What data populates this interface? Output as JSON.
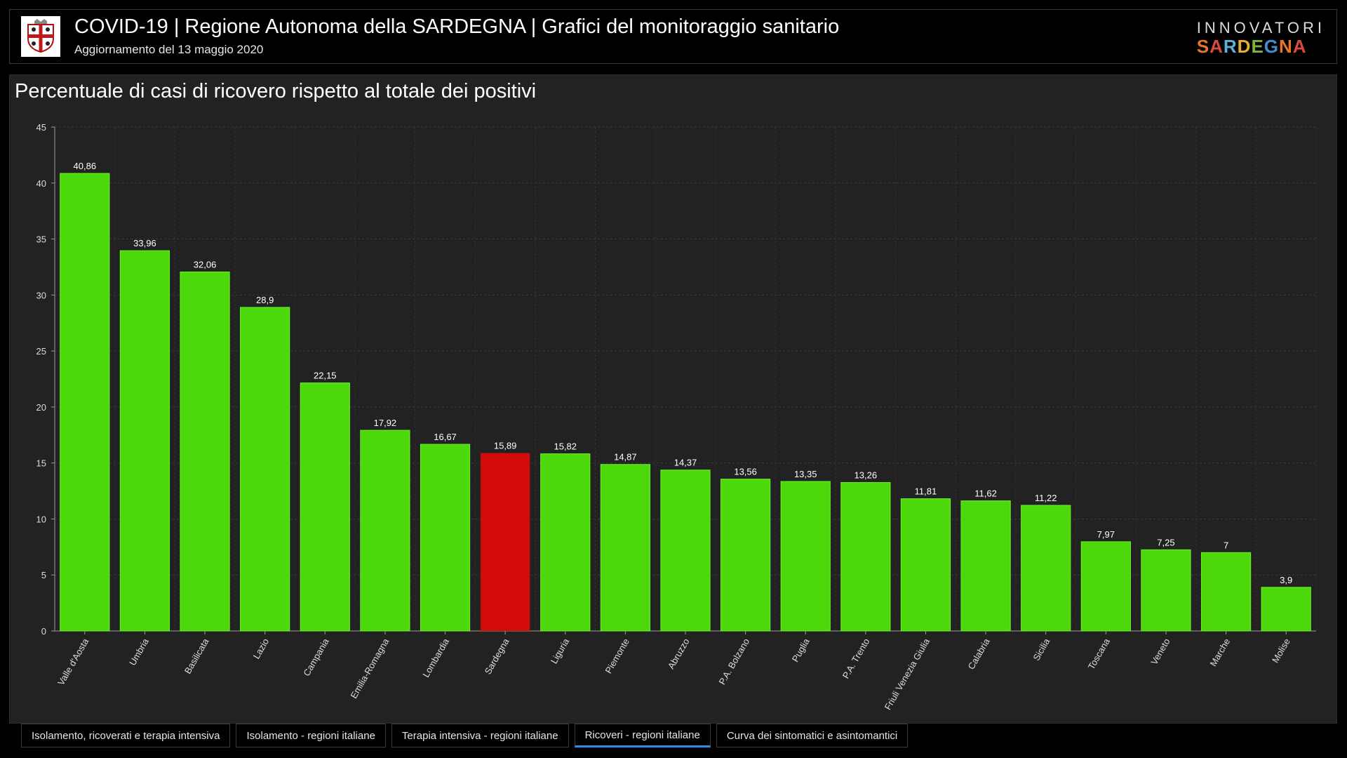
{
  "header": {
    "title": "COVID-19 | Regione Autonoma della SARDEGNA | Grafici del monitoraggio sanitario",
    "subtitle": "Aggiornamento del 13 maggio 2020",
    "brand_top": "INNOVATORI",
    "brand_bottom": "SARDEGNA",
    "brand_colors": [
      "#e8742a",
      "#d94a3a",
      "#5ab1d8",
      "#e8b02a",
      "#7bb342",
      "#3f8fd0",
      "#e8742a",
      "#d94a3a"
    ]
  },
  "chart_title": "Percentuale di casi di ricovero rispetto al totale dei positivi",
  "chart_data": {
    "type": "bar",
    "title": "Percentuale di casi di ricovero rispetto al totale dei positivi",
    "xlabel": "",
    "ylabel": "",
    "ylim": [
      0,
      45
    ],
    "yticks": [
      0,
      5,
      10,
      15,
      20,
      25,
      30,
      35,
      40,
      45
    ],
    "grid": true,
    "categories": [
      "Valle d'Aosta",
      "Umbria",
      "Basilicata",
      "Lazio",
      "Campania",
      "Emilia-Romagna",
      "Lombardia",
      "Sardegna",
      "Liguria",
      "Piemonte",
      "Abruzzo",
      "P.A. Bolzano",
      "Puglia",
      "P.A. Trento",
      "Friuli Venezia Giulia",
      "Calabria",
      "Sicilia",
      "Toscana",
      "Veneto",
      "Marche",
      "Molise"
    ],
    "values": [
      40.86,
      33.96,
      32.06,
      28.9,
      22.15,
      17.92,
      16.67,
      15.89,
      15.82,
      14.87,
      14.37,
      13.56,
      13.35,
      13.26,
      11.81,
      11.62,
      11.22,
      7.97,
      7.25,
      7,
      3.9
    ],
    "value_labels": [
      "40,86",
      "33,96",
      "32,06",
      "28,9",
      "22,15",
      "17,92",
      "16,67",
      "15,89",
      "15,82",
      "14,87",
      "14,37",
      "13,56",
      "13,35",
      "13,26",
      "11,81",
      "11,62",
      "11,22",
      "7,97",
      "7,25",
      "7",
      "3,9"
    ],
    "bar_color": "#4cd80a",
    "highlight_color": "#d40b0b",
    "highlight_category": "Sardegna"
  },
  "tabs": [
    {
      "label": "Isolamento, ricoverati e terapia intensiva",
      "active": false
    },
    {
      "label": "Isolamento - regioni italiane",
      "active": false
    },
    {
      "label": "Terapia intensiva - regioni italiane",
      "active": false
    },
    {
      "label": "Ricoveri - regioni italiane",
      "active": true
    },
    {
      "label": "Curva dei sintomatici e asintomantici",
      "active": false
    }
  ]
}
